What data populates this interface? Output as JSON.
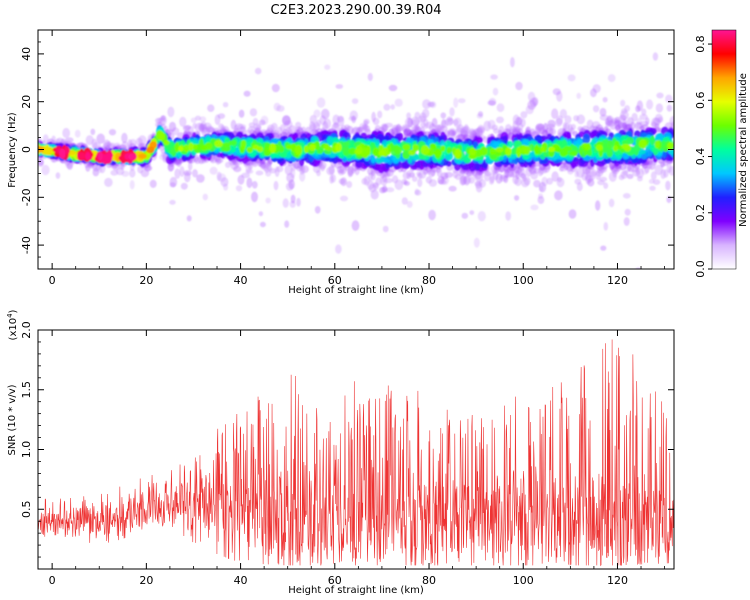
{
  "title": "C2E3.2023.290.00.39.R04",
  "chart_data": [
    {
      "type": "heatmap",
      "xlabel": "Height of straight line (km)",
      "ylabel": "Frequency (Hz)",
      "xlim": [
        -3,
        132
      ],
      "ylim": [
        -50,
        50
      ],
      "xticks": [
        0,
        20,
        40,
        60,
        80,
        100,
        120
      ],
      "yticks": [
        -40,
        -20,
        0,
        20,
        40
      ],
      "xtick_labels": [
        "0",
        "20",
        "40",
        "60",
        "80",
        "100",
        "120"
      ],
      "ytick_labels": [
        "-40",
        "-20",
        "0",
        "20",
        "40"
      ],
      "colorbar": {
        "label": "Normalized spectral amplitude",
        "range": [
          0.0,
          0.85
        ],
        "ticks": [
          0.0,
          0.2,
          0.4,
          0.6,
          0.8
        ],
        "tick_labels": [
          "0.0",
          "0.2",
          "0.4",
          "0.6",
          "0.8"
        ],
        "colormap": [
          "#ffffff",
          "#d8b4ff",
          "#7f00ff",
          "#2020ff",
          "#00c8ff",
          "#00ff9e",
          "#6cff00",
          "#e6ff00",
          "#ffa500",
          "#ff0000",
          "#ff1493"
        ]
      },
      "features": {
        "center_frequency_hz": [
          [
            -3,
            0
          ],
          [
            10,
            -3
          ],
          [
            20,
            -3
          ],
          [
            23,
            7
          ],
          [
            25,
            0
          ],
          [
            35,
            2
          ],
          [
            40,
            1
          ],
          [
            50,
            0
          ],
          [
            60,
            1
          ],
          [
            70,
            -1
          ],
          [
            80,
            0
          ],
          [
            90,
            -2
          ],
          [
            100,
            0
          ],
          [
            110,
            0
          ],
          [
            120,
            1
          ],
          [
            132,
            2
          ]
        ],
        "halfwidth_hz": [
          [
            -3,
            3
          ],
          [
            22,
            4
          ],
          [
            25,
            7
          ],
          [
            40,
            8
          ],
          [
            60,
            10
          ],
          [
            70,
            12
          ],
          [
            90,
            10
          ],
          [
            110,
            10
          ],
          [
            120,
            12
          ],
          [
            132,
            10
          ]
        ],
        "peak_amplitude_at_height_km": [
          2,
          7,
          11,
          16
        ]
      },
      "grid": false
    },
    {
      "type": "line",
      "xlabel": "Height of straight line (km)",
      "ylabel": "SNR (10 * v/v)",
      "multiplier_label": "(x10",
      "multiplier_exponent": "4",
      "multiplier_close": ")",
      "xlim": [
        -3,
        132
      ],
      "ylim": [
        0,
        2.0
      ],
      "xticks": [
        0,
        20,
        40,
        60,
        80,
        100,
        120
      ],
      "yticks": [
        0.5,
        1.0,
        1.5,
        2.0
      ],
      "xtick_labels": [
        "0",
        "20",
        "40",
        "60",
        "80",
        "100",
        "120"
      ],
      "ytick_labels": [
        "0.5",
        "1.0",
        "1.5",
        "2.0"
      ],
      "series": [
        {
          "color": "#ee3333",
          "envelope": {
            "x": [
              -3,
              10,
              20,
              30,
              40,
              50,
              60,
              70,
              80,
              90,
              100,
              110,
              120,
              132
            ],
            "baseline": [
              0.4,
              0.38,
              0.5,
              0.55,
              0.5,
              0.45,
              0.45,
              0.45,
              0.45,
              0.45,
              0.45,
              0.45,
              0.45,
              0.45
            ],
            "max": [
              0.62,
              0.62,
              0.8,
              1.0,
              1.35,
              1.65,
              1.6,
              1.55,
              1.5,
              1.45,
              1.45,
              1.6,
              2.0,
              1.3
            ],
            "min": [
              0.25,
              0.15,
              0.35,
              0.2,
              0.05,
              0.03,
              0.03,
              0.03,
              0.03,
              0.03,
              0.03,
              0.03,
              0.03,
              0.05
            ]
          }
        }
      ],
      "grid": false
    }
  ]
}
